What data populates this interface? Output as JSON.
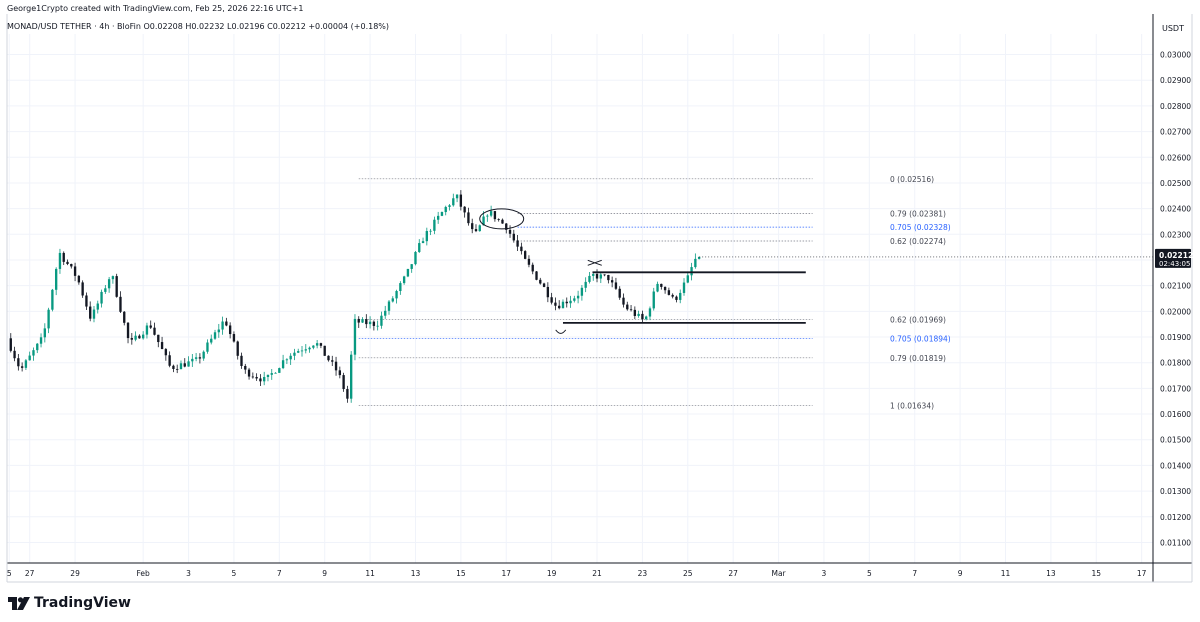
{
  "header": {
    "credit": "George1Crypto created with TradingView.com, Feb 25, 2026 22:16 UTC+1",
    "symbol_line": "MONAD/USD TETHER · 4h · BloFin  O0.02208  H0.02232  L0.02196  C0.02212  +0.00004 (+0.18%)"
  },
  "branding": {
    "logo_text": "TradingView",
    "icon": "tradingview-logo-icon"
  },
  "colors": {
    "up": "#089981",
    "down": "#131722",
    "grid": "#f0f3fa",
    "fib_gray": "#787b86",
    "fib_blue": "#2962ff",
    "axis_text": "#131722",
    "price_tag_bg": "#131722",
    "price_tag_fg": "#ffffff"
  },
  "chart_data": {
    "type": "candlestick",
    "interval": "4h",
    "y_axis": {
      "unit": "USDT",
      "range": [
        0.0102,
        0.0308
      ],
      "ticks": [
        "0.03000",
        "0.02900",
        "0.02800",
        "0.02700",
        "0.02600",
        "0.02500",
        "0.02400",
        "0.02300",
        "0.02200",
        "0.02100",
        "0.02000",
        "0.01900",
        "0.01800",
        "0.01700",
        "0.01600",
        "0.01500",
        "0.01400",
        "0.01300",
        "0.01200",
        "0.01100"
      ]
    },
    "x_axis": {
      "range_days": [
        -6.0,
        44.5
      ],
      "ticks": [
        {
          "label": "5",
          "day": -5.9
        },
        {
          "label": "27",
          "day": -5
        },
        {
          "label": "29",
          "day": -3
        },
        {
          "label": "Feb",
          "day": 0
        },
        {
          "label": "3",
          "day": 2
        },
        {
          "label": "5",
          "day": 4
        },
        {
          "label": "7",
          "day": 6
        },
        {
          "label": "9",
          "day": 8
        },
        {
          "label": "11",
          "day": 10
        },
        {
          "label": "13",
          "day": 12
        },
        {
          "label": "15",
          "day": 14
        },
        {
          "label": "17",
          "day": 16
        },
        {
          "label": "19",
          "day": 18
        },
        {
          "label": "21",
          "day": 20
        },
        {
          "label": "23",
          "day": 22
        },
        {
          "label": "25",
          "day": 24
        },
        {
          "label": "27",
          "day": 26
        },
        {
          "label": "Mar",
          "day": 28
        },
        {
          "label": "3",
          "day": 30
        },
        {
          "label": "5",
          "day": 32
        },
        {
          "label": "7",
          "day": 34
        },
        {
          "label": "9",
          "day": 36
        },
        {
          "label": "11",
          "day": 38
        },
        {
          "label": "13",
          "day": 40
        },
        {
          "label": "15",
          "day": 42
        },
        {
          "label": "17",
          "day": 44
        }
      ]
    },
    "anchors": [
      {
        "day": -6.0,
        "close": 0.01895
      },
      {
        "day": -5.4,
        "close": 0.0177
      },
      {
        "day": -4.4,
        "close": 0.019
      },
      {
        "day": -3.7,
        "close": 0.0223
      },
      {
        "day": -2.9,
        "close": 0.0213
      },
      {
        "day": -2.3,
        "close": 0.0197
      },
      {
        "day": -1.4,
        "close": 0.0215
      },
      {
        "day": -0.6,
        "close": 0.0187
      },
      {
        "day": 0.3,
        "close": 0.0195
      },
      {
        "day": 1.2,
        "close": 0.0178
      },
      {
        "day": 2.4,
        "close": 0.0181
      },
      {
        "day": 3.6,
        "close": 0.0197
      },
      {
        "day": 4.4,
        "close": 0.0177
      },
      {
        "day": 5.4,
        "close": 0.0173
      },
      {
        "day": 6.4,
        "close": 0.0183
      },
      {
        "day": 7.6,
        "close": 0.0188
      },
      {
        "day": 8.6,
        "close": 0.0176
      },
      {
        "day": 9.0,
        "close": 0.0166
      },
      {
        "day": 9.3,
        "close": 0.0196
      },
      {
        "day": 10.3,
        "close": 0.0195
      },
      {
        "day": 11.6,
        "close": 0.0214
      },
      {
        "day": 12.3,
        "close": 0.0228
      },
      {
        "day": 13.3,
        "close": 0.024
      },
      {
        "day": 13.8,
        "close": 0.0245
      },
      {
        "day": 14.6,
        "close": 0.0229
      },
      {
        "day": 15.2,
        "close": 0.0239
      },
      {
        "day": 16.0,
        "close": 0.0233
      },
      {
        "day": 16.8,
        "close": 0.022
      },
      {
        "day": 17.6,
        "close": 0.021
      },
      {
        "day": 18.2,
        "close": 0.0202
      },
      {
        "day": 19.1,
        "close": 0.0206
      },
      {
        "day": 19.8,
        "close": 0.0214
      },
      {
        "day": 20.5,
        "close": 0.0213
      },
      {
        "day": 21.2,
        "close": 0.0202
      },
      {
        "day": 22.1,
        "close": 0.0196
      },
      {
        "day": 22.7,
        "close": 0.0212
      },
      {
        "day": 23.4,
        "close": 0.0204
      },
      {
        "day": 24.0,
        "close": 0.0213
      },
      {
        "day": 24.3,
        "close": 0.022
      },
      {
        "day": 24.5,
        "close": 0.02212
      }
    ],
    "fib_levels": [
      {
        "label": "0 (0.02516)",
        "price": 0.02516,
        "style": "gray",
        "x_start_day": 9.5
      },
      {
        "label": "0.79 (0.02381)",
        "price": 0.02381,
        "style": "gray",
        "x_start_day": 16.5
      },
      {
        "label": "0.705 (0.02328)",
        "price": 0.02328,
        "style": "blue",
        "x_start_day": 16.5
      },
      {
        "label": "0.62 (0.02274)",
        "price": 0.02274,
        "style": "gray",
        "x_start_day": 16.5
      },
      {
        "label": "0.62 (0.01969)",
        "price": 0.01969,
        "style": "gray",
        "x_start_day": 9.5
      },
      {
        "label": "0.705 (0.01894)",
        "price": 0.01894,
        "style": "blue",
        "x_start_day": 9.5
      },
      {
        "label": "0.79 (0.01819)",
        "price": 0.01819,
        "style": "gray",
        "x_start_day": 9.5
      },
      {
        "label": "1 (0.01634)",
        "price": 0.01634,
        "style": "gray",
        "x_start_day": 9.5
      }
    ],
    "fib_end_day": 29.5,
    "horizontal_lines": [
      {
        "price": 0.02152,
        "x_start_day": 19.8,
        "x_end_day": 29.2
      },
      {
        "price": 0.01955,
        "x_start_day": 18.5,
        "x_end_day": 29.2
      }
    ],
    "ellipse": {
      "day": 15.8,
      "price": 0.0236
    },
    "last_price": {
      "price_label": "0.02212",
      "countdown": "02:43:05",
      "price": 0.02212
    }
  }
}
